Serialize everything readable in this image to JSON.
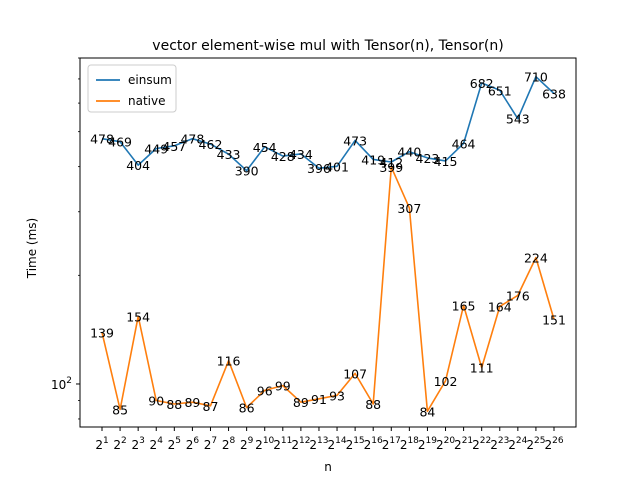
{
  "chart_data": {
    "type": "line",
    "title": "vector element-wise mul with Tensor(n), Tensor(n)",
    "xlabel": "n",
    "ylabel": "Time (ms)",
    "y_scale": "log",
    "ylim": [
      76,
      800
    ],
    "y_ticks": [
      {
        "value": 100,
        "base": "10",
        "exp": "2"
      }
    ],
    "grid": false,
    "legend_position": "top-left",
    "categories": [
      {
        "base": "2",
        "exp": "1"
      },
      {
        "base": "2",
        "exp": "2"
      },
      {
        "base": "2",
        "exp": "3"
      },
      {
        "base": "2",
        "exp": "4"
      },
      {
        "base": "2",
        "exp": "5"
      },
      {
        "base": "2",
        "exp": "6"
      },
      {
        "base": "2",
        "exp": "7"
      },
      {
        "base": "2",
        "exp": "8"
      },
      {
        "base": "2",
        "exp": "9"
      },
      {
        "base": "2",
        "exp": "10"
      },
      {
        "base": "2",
        "exp": "11"
      },
      {
        "base": "2",
        "exp": "12"
      },
      {
        "base": "2",
        "exp": "13"
      },
      {
        "base": "2",
        "exp": "14"
      },
      {
        "base": "2",
        "exp": "15"
      },
      {
        "base": "2",
        "exp": "16"
      },
      {
        "base": "2",
        "exp": "17"
      },
      {
        "base": "2",
        "exp": "18"
      },
      {
        "base": "2",
        "exp": "19"
      },
      {
        "base": "2",
        "exp": "20"
      },
      {
        "base": "2",
        "exp": "21"
      },
      {
        "base": "2",
        "exp": "22"
      },
      {
        "base": "2",
        "exp": "23"
      },
      {
        "base": "2",
        "exp": "24"
      },
      {
        "base": "2",
        "exp": "25"
      },
      {
        "base": "2",
        "exp": "26"
      }
    ],
    "series": [
      {
        "name": "einsum",
        "color": "#1f77b4",
        "values": [
          478,
          469,
          404,
          449,
          457,
          478,
          462,
          433,
          390,
          454,
          428,
          434,
          396,
          401,
          473,
          419,
          412,
          440,
          423,
          415,
          464,
          682,
          651,
          543,
          710,
          638
        ],
        "labels": [
          "478",
          "469",
          "404",
          "449",
          "457",
          "478",
          "462",
          "433",
          "390",
          "454",
          "428",
          "434",
          "396",
          "401",
          "473",
          "419",
          "412",
          "440",
          "423",
          "415",
          "464",
          "682",
          "651",
          "543",
          "710",
          "638"
        ]
      },
      {
        "name": "native",
        "color": "#ff7f0e",
        "values": [
          139,
          85,
          154,
          90,
          88,
          89,
          87,
          116,
          86,
          96,
          99,
          89,
          91,
          93,
          107,
          88,
          399,
          307,
          84,
          102,
          165,
          111,
          164,
          176,
          224,
          151
        ],
        "labels": [
          "139",
          "85",
          "154",
          "90",
          "88",
          "89",
          "87",
          "116",
          "86",
          "96",
          "99",
          "89",
          "91",
          "93",
          "107",
          "88",
          "399",
          "307",
          "84",
          "102",
          "165",
          "111",
          "164",
          "176",
          "224",
          "151"
        ]
      }
    ]
  }
}
